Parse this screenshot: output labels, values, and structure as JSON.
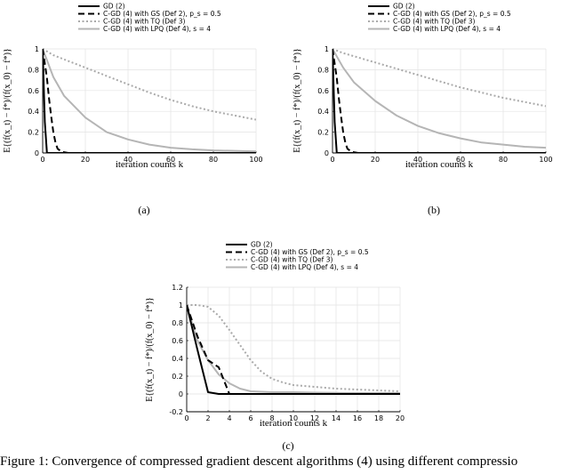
{
  "chart_data": [
    {
      "type": "line",
      "panel_label": "(a)",
      "xlabel": "iteration counts k",
      "ylabel": "E{(f(x_t) − f*)/(f(x_0) − f*)}",
      "xlim": [
        0,
        100
      ],
      "ylim": [
        0,
        1
      ],
      "xticks": [
        0,
        20,
        40,
        60,
        80,
        100
      ],
      "yticks": [
        0,
        0.2,
        0.4,
        0.6,
        0.8,
        1
      ],
      "xtick_labels": [
        "0",
        "20",
        "40",
        "60",
        "80",
        "100"
      ],
      "ytick_labels": [
        "0",
        "0.2",
        "0.4",
        "0.6",
        "0.8",
        "1"
      ],
      "grid": true,
      "legend_position": "top",
      "series": [
        {
          "name": "GD (2)",
          "x": [
            0,
            1,
            2,
            3,
            100
          ],
          "y": [
            1,
            0.3,
            0.0,
            0.0,
            0.0
          ]
        },
        {
          "name": "C-GD (4) with GS (Def 2), p_s = 0.5",
          "x": [
            0,
            2,
            3,
            4,
            5,
            6,
            7,
            9,
            12
          ],
          "y": [
            1,
            0.72,
            0.52,
            0.35,
            0.2,
            0.1,
            0.04,
            0.01,
            0.0
          ]
        },
        {
          "name": "C-GD (4) with TQ (Def 3)",
          "x": [
            0,
            5,
            10,
            20,
            30,
            40,
            50,
            60,
            70,
            80,
            90,
            100
          ],
          "y": [
            1,
            0.94,
            0.9,
            0.82,
            0.74,
            0.66,
            0.58,
            0.51,
            0.45,
            0.4,
            0.36,
            0.32
          ]
        },
        {
          "name": "C-GD (4) with LPQ (Def 4), s = 4",
          "x": [
            0,
            5,
            10,
            20,
            30,
            40,
            50,
            60,
            70,
            80,
            90,
            100
          ],
          "y": [
            1,
            0.73,
            0.55,
            0.34,
            0.2,
            0.13,
            0.08,
            0.05,
            0.035,
            0.025,
            0.02,
            0.015
          ]
        }
      ]
    },
    {
      "type": "line",
      "panel_label": "(b)",
      "xlabel": "iteration counts k",
      "ylabel": "E{(f(x_t) − f*)/(f(x_0) − f*)}",
      "xlim": [
        0,
        100
      ],
      "ylim": [
        0,
        1
      ],
      "xticks": [
        0,
        20,
        40,
        60,
        80,
        100
      ],
      "yticks": [
        0,
        0.2,
        0.4,
        0.6,
        0.8,
        1
      ],
      "xtick_labels": [
        "0",
        "20",
        "40",
        "60",
        "80",
        "100"
      ],
      "ytick_labels": [
        "0",
        "0.2",
        "0.4",
        "0.6",
        "0.8",
        "1"
      ],
      "grid": true,
      "legend_position": "top",
      "series": [
        {
          "name": "GD (2)",
          "x": [
            0,
            1,
            2,
            3,
            100
          ],
          "y": [
            1,
            0.3,
            0.0,
            0.0,
            0.0
          ]
        },
        {
          "name": "C-GD (4) with GS (Def 2), p_s = 0.5",
          "x": [
            0,
            2,
            3,
            4,
            5,
            6,
            7,
            9,
            12
          ],
          "y": [
            1,
            0.72,
            0.52,
            0.35,
            0.2,
            0.1,
            0.04,
            0.01,
            0.0
          ]
        },
        {
          "name": "C-GD (4) with TQ (Def 3)",
          "x": [
            0,
            5,
            10,
            20,
            30,
            40,
            50,
            60,
            70,
            80,
            90,
            100
          ],
          "y": [
            1,
            0.96,
            0.93,
            0.87,
            0.81,
            0.75,
            0.69,
            0.63,
            0.58,
            0.53,
            0.49,
            0.45
          ]
        },
        {
          "name": "C-GD (4) with LPQ (Def 4), s = 4",
          "x": [
            0,
            5,
            10,
            20,
            30,
            40,
            50,
            60,
            70,
            80,
            90,
            100
          ],
          "y": [
            1,
            0.82,
            0.68,
            0.5,
            0.36,
            0.26,
            0.19,
            0.14,
            0.1,
            0.08,
            0.06,
            0.05
          ]
        }
      ]
    },
    {
      "type": "line",
      "panel_label": "(c)",
      "xlabel": "iteration counts k",
      "ylabel": "E{(f(x_t) − f*)/(f(x_0) − f*)}",
      "xlim": [
        0,
        20
      ],
      "ylim": [
        -0.2,
        1.2
      ],
      "xticks": [
        0,
        2,
        4,
        6,
        8,
        10,
        12,
        14,
        16,
        18,
        20
      ],
      "yticks": [
        -0.2,
        0,
        0.2,
        0.4,
        0.6,
        0.8,
        1,
        1.2
      ],
      "xtick_labels": [
        "0",
        "2",
        "4",
        "6",
        "8",
        "10",
        "12",
        "14",
        "16",
        "18",
        "20"
      ],
      "ytick_labels": [
        "-0.2",
        "0",
        "0.2",
        "0.4",
        "0.6",
        "0.8",
        "1",
        "1.2"
      ],
      "grid": true,
      "legend_position": "top",
      "series": [
        {
          "name": "GD (2)",
          "x": [
            0,
            1,
            2,
            3,
            20
          ],
          "y": [
            1,
            0.5,
            0.02,
            0.0,
            0.0
          ]
        },
        {
          "name": "C-GD (4) with GS (Def 2), p_s = 0.5",
          "x": [
            0,
            1,
            2,
            3,
            3.5,
            4,
            5,
            6
          ],
          "y": [
            1,
            0.65,
            0.38,
            0.3,
            0.15,
            0.0,
            0.0,
            0.0
          ]
        },
        {
          "name": "C-GD (4) with TQ (Def 3)",
          "x": [
            0,
            1,
            2,
            3,
            4,
            5,
            6,
            7,
            8,
            9,
            10,
            12,
            14,
            16,
            18,
            20
          ],
          "y": [
            1,
            1.0,
            0.98,
            0.88,
            0.72,
            0.55,
            0.38,
            0.25,
            0.17,
            0.13,
            0.1,
            0.08,
            0.06,
            0.05,
            0.04,
            0.03
          ]
        },
        {
          "name": "C-GD (4) with LPQ (Def 4), s = 4",
          "x": [
            0,
            1,
            2,
            3,
            4,
            5,
            6,
            8,
            10,
            12,
            14,
            16,
            18,
            20
          ],
          "y": [
            1,
            0.6,
            0.38,
            0.22,
            0.12,
            0.06,
            0.03,
            0.02,
            0.02,
            0.015,
            0.012,
            0.01,
            0.01,
            0.01
          ]
        }
      ]
    }
  ],
  "legend": {
    "gd": "GD (2)",
    "gs": "C-GD (4) with GS (Def 2), p_s = 0.5",
    "tq": "C-GD (4) with TQ (Def 3)",
    "lpq": "C-GD (4) with LPQ (Def 4), s = 4"
  },
  "caption": "Figure 1: Convergence of compressed gradient descent algorithms (4) using different compressio",
  "styles": {
    "gd": {
      "color": "#000000",
      "dash": "",
      "width": 2
    },
    "gs": {
      "color": "#000000",
      "dash": "7,4",
      "width": 2
    },
    "tq": {
      "color": "#aaaaaa",
      "dash": "2,2.5",
      "width": 2
    },
    "lpq": {
      "color": "#b5b5b5",
      "dash": "",
      "width": 2
    }
  }
}
